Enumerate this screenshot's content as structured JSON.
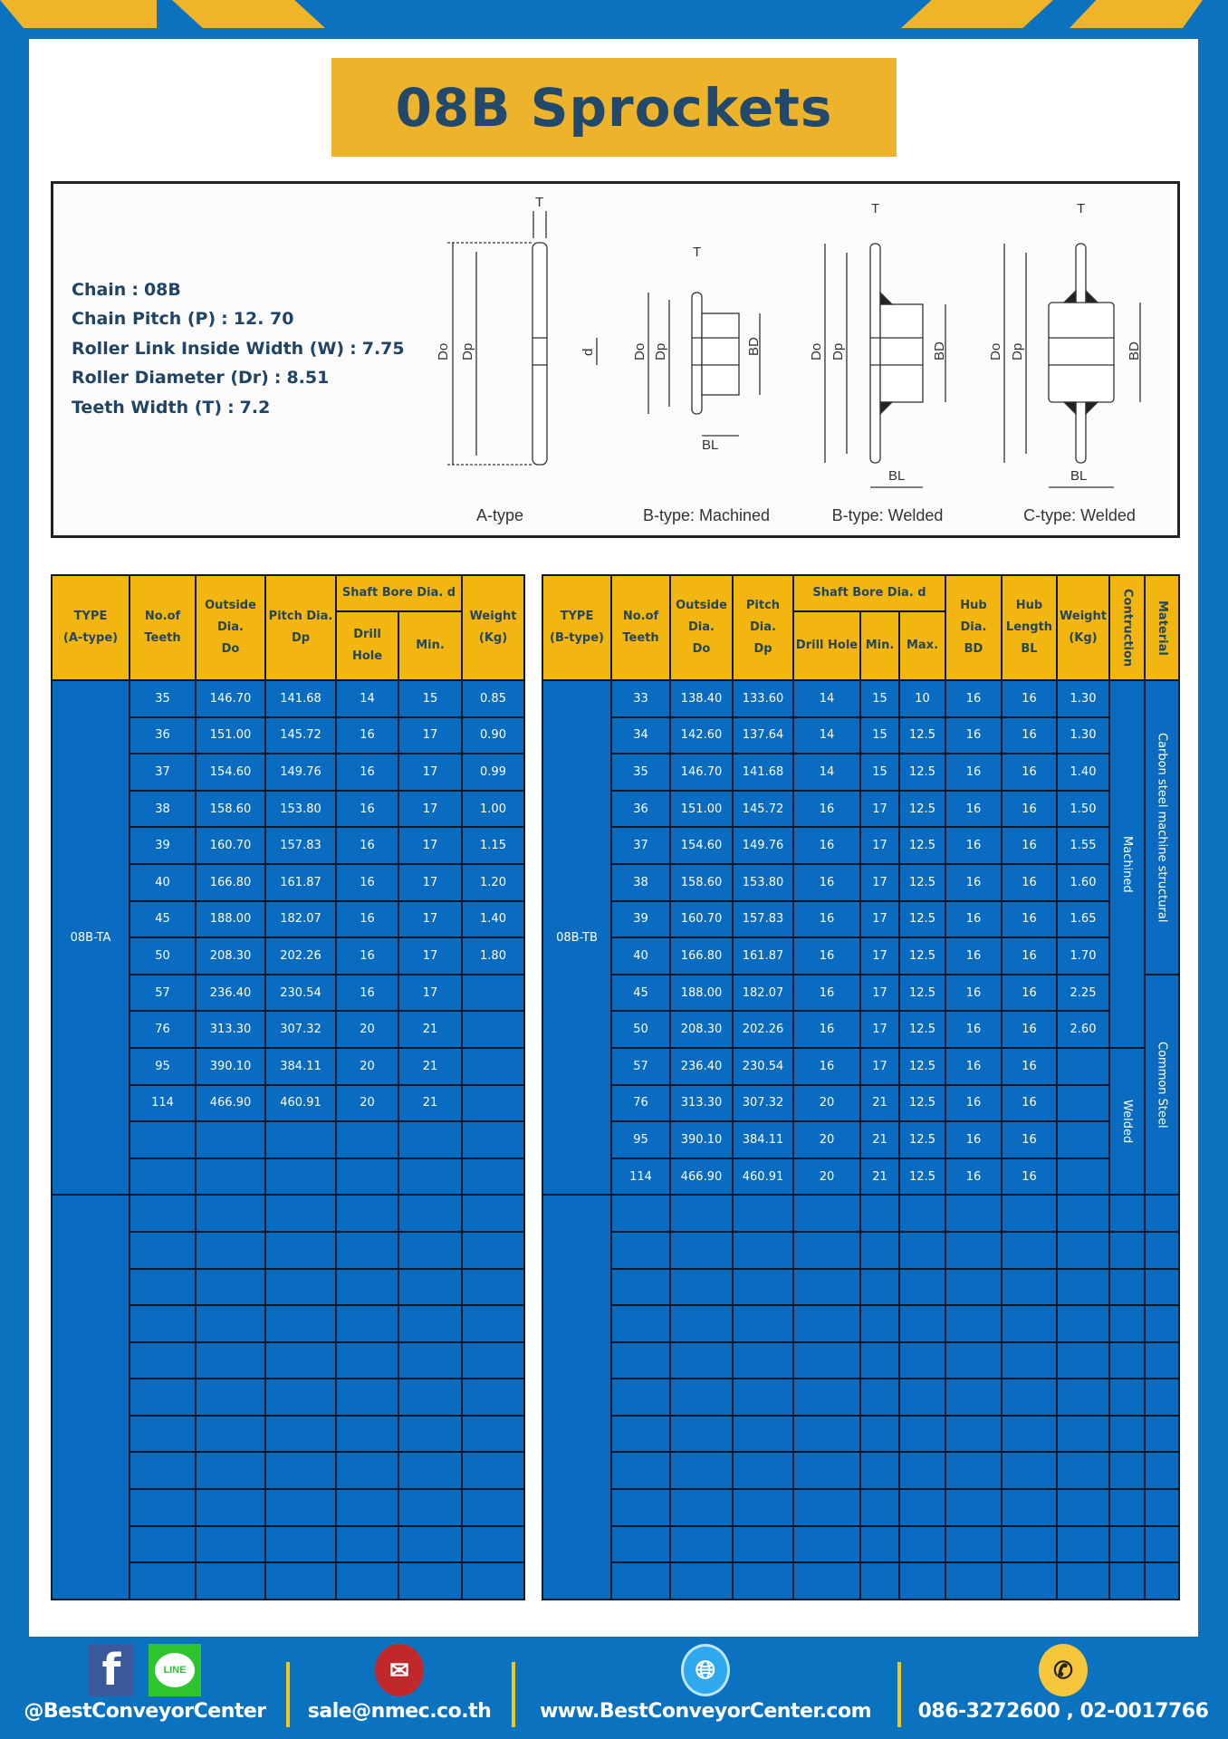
{
  "title": "08B Sprockets",
  "colors": {
    "brand_blue": "#0b72bf",
    "accent_yellow": "#f0b429",
    "header_yellow": "#f3b50f",
    "cell_blue": "#0a6cc0",
    "title_text": "#22486b"
  },
  "specs": [
    {
      "label": "Chain",
      "value": "08B"
    },
    {
      "label": "Chain Pitch (P)",
      "value": "12. 70"
    },
    {
      "label": "Roller Link Inside Width (W)",
      "value": "7.75"
    },
    {
      "label": "Roller Diameter (Dr)",
      "value": "8.51"
    },
    {
      "label": "Teeth Width (T)",
      "value": "7.2"
    }
  ],
  "diagram": {
    "labels": {
      "t": "T",
      "do": "Do",
      "dp": "Dp",
      "d": "d",
      "bd": "BD",
      "bl": "BL"
    },
    "captions": [
      "A-type",
      "B-type: Machined",
      "B-type: Welded",
      "C-type: Welded"
    ]
  },
  "table_a": {
    "headers": {
      "type": "TYPE\n(A-type)",
      "teeth": "No.of\nTeeth",
      "outside": "Outside\nDia.\nDo",
      "pitch": "Pitch Dia.\nDp",
      "bore": "Shaft Bore Dia. d",
      "drill": "Drill Hole",
      "min": "Min.",
      "weight": "Weight\n(Kg)"
    },
    "type_label": "08B-TA",
    "rows": [
      [
        "35",
        "146.70",
        "141.68",
        "14",
        "15",
        "0.85"
      ],
      [
        "36",
        "151.00",
        "145.72",
        "16",
        "17",
        "0.90"
      ],
      [
        "37",
        "154.60",
        "149.76",
        "16",
        "17",
        "0.99"
      ],
      [
        "38",
        "158.60",
        "153.80",
        "16",
        "17",
        "1.00"
      ],
      [
        "39",
        "160.70",
        "157.83",
        "16",
        "17",
        "1.15"
      ],
      [
        "40",
        "166.80",
        "161.87",
        "16",
        "17",
        "1.20"
      ],
      [
        "45",
        "188.00",
        "182.07",
        "16",
        "17",
        "1.40"
      ],
      [
        "50",
        "208.30",
        "202.26",
        "16",
        "17",
        "1.80"
      ],
      [
        "57",
        "236.40",
        "230.54",
        "16",
        "17",
        ""
      ],
      [
        "76",
        "313.30",
        "307.32",
        "20",
        "21",
        ""
      ],
      [
        "95",
        "390.10",
        "384.11",
        "20",
        "21",
        ""
      ],
      [
        "114",
        "466.90",
        "460.91",
        "20",
        "21",
        ""
      ],
      [
        "",
        "",
        "",
        "",
        "",
        ""
      ],
      [
        "",
        "",
        "",
        "",
        "",
        ""
      ]
    ]
  },
  "table_b": {
    "headers": {
      "type": "TYPE\n(B-type)",
      "teeth": "No.of\nTeeth",
      "outside": "Outside\nDia.\nDo",
      "pitch": "Pitch Dia.\nDp",
      "bore": "Shaft Bore Dia. d",
      "drill": "Drill Hole",
      "min": "Min.",
      "max": "Max.",
      "hub_dia": "Hub Dia.\nBD",
      "hub_len": "Hub\nLength\nBL",
      "weight": "Weight\n(Kg)",
      "construction": "Contruction",
      "material": "Material"
    },
    "type_label": "08B-TB",
    "rows": [
      [
        "33",
        "138.40",
        "133.60",
        "14",
        "15",
        "10",
        "16",
        "16",
        "1.30"
      ],
      [
        "34",
        "142.60",
        "137.64",
        "14",
        "15",
        "12.5",
        "16",
        "16",
        "1.30"
      ],
      [
        "35",
        "146.70",
        "141.68",
        "14",
        "15",
        "12.5",
        "16",
        "16",
        "1.40"
      ],
      [
        "36",
        "151.00",
        "145.72",
        "16",
        "17",
        "12.5",
        "16",
        "16",
        "1.50"
      ],
      [
        "37",
        "154.60",
        "149.76",
        "16",
        "17",
        "12.5",
        "16",
        "16",
        "1.55"
      ],
      [
        "38",
        "158.60",
        "153.80",
        "16",
        "17",
        "12.5",
        "16",
        "16",
        "1.60"
      ],
      [
        "39",
        "160.70",
        "157.83",
        "16",
        "17",
        "12.5",
        "16",
        "16",
        "1.65"
      ],
      [
        "40",
        "166.80",
        "161.87",
        "16",
        "17",
        "12.5",
        "16",
        "16",
        "1.70"
      ],
      [
        "45",
        "188.00",
        "182.07",
        "16",
        "17",
        "12.5",
        "16",
        "16",
        "2.25"
      ],
      [
        "50",
        "208.30",
        "202.26",
        "16",
        "17",
        "12.5",
        "16",
        "16",
        "2.60"
      ],
      [
        "57",
        "236.40",
        "230.54",
        "16",
        "17",
        "12.5",
        "16",
        "16",
        ""
      ],
      [
        "76",
        "313.30",
        "307.32",
        "20",
        "21",
        "12.5",
        "16",
        "16",
        ""
      ],
      [
        "95",
        "390.10",
        "384.11",
        "20",
        "21",
        "12.5",
        "16",
        "16",
        ""
      ],
      [
        "114",
        "466.90",
        "460.91",
        "20",
        "21",
        "12.5",
        "16",
        "16",
        ""
      ]
    ],
    "construction_groups": [
      {
        "label": "Machined",
        "rows": 10
      },
      {
        "label": "Welded",
        "rows": 4
      }
    ],
    "material_groups": [
      {
        "label": "Carbon steel  machine structural",
        "rows": 8
      },
      {
        "label": "Common  Steel",
        "rows": 6
      }
    ]
  },
  "footer": {
    "social": "@BestConveyorCenter",
    "email": "sale@nmec.co.th",
    "website": "www.BestConveyorCenter.com",
    "phone": "086-3272600 , 02-0017766",
    "line_icon_text": "LINE"
  }
}
